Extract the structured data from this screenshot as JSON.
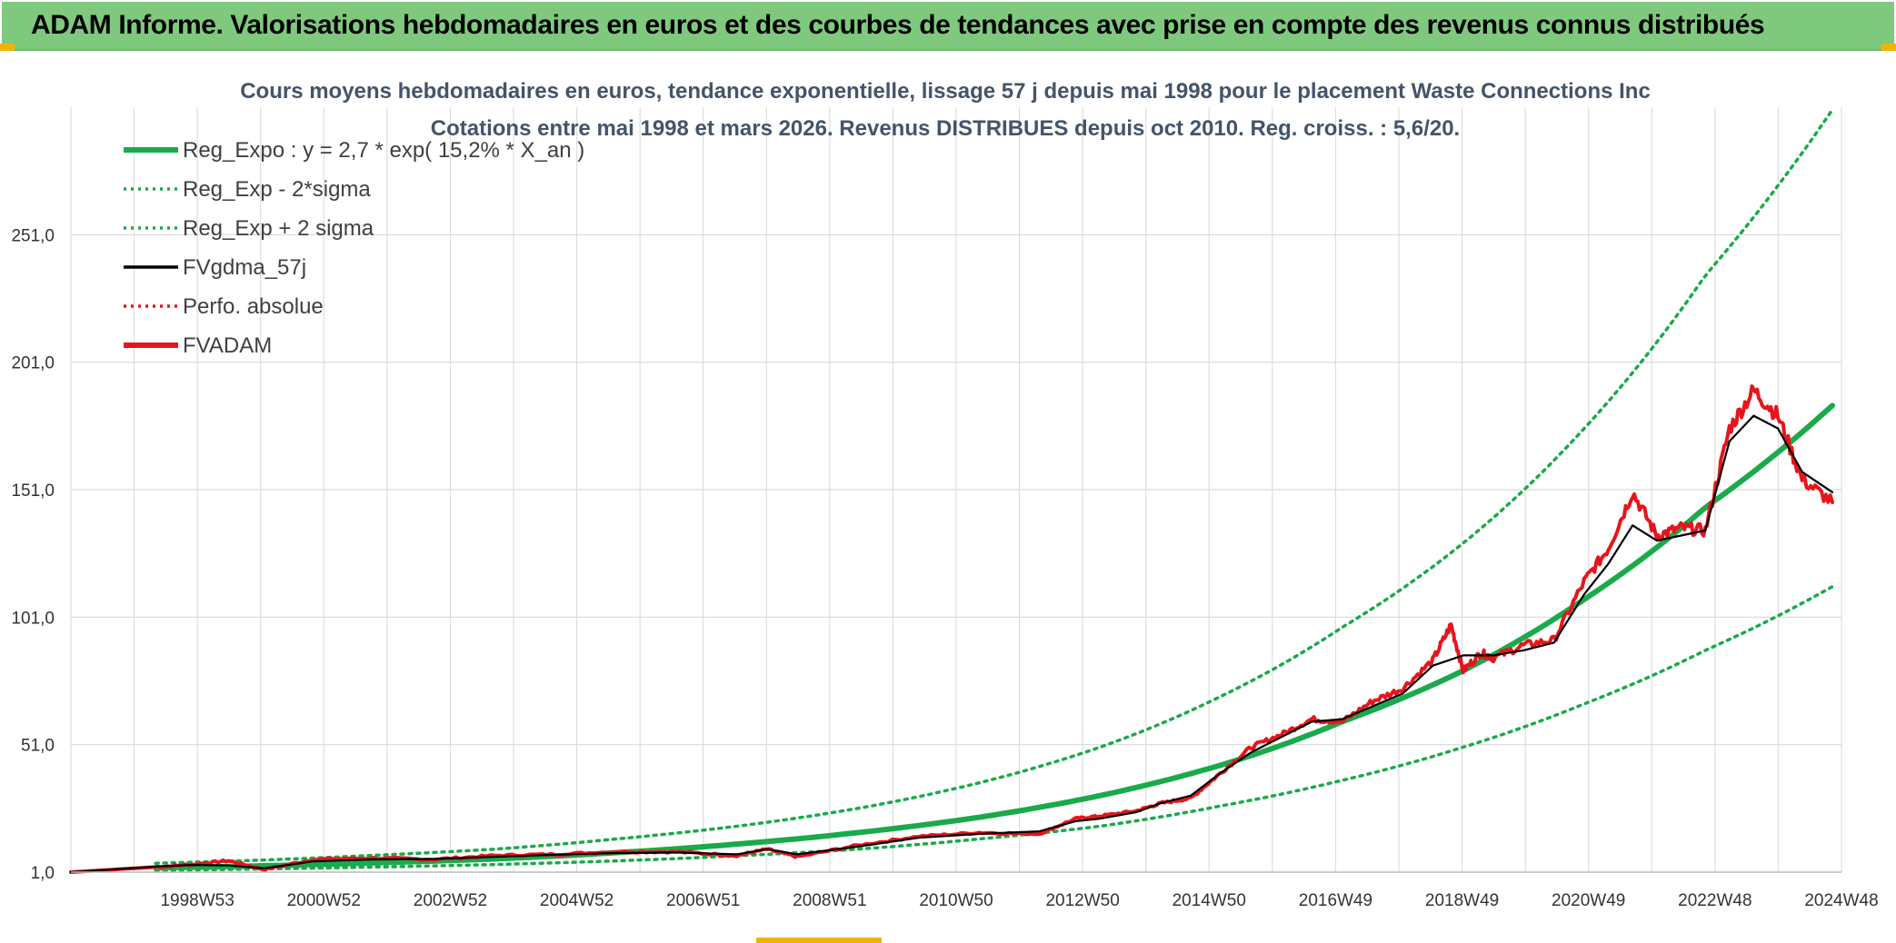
{
  "header": {
    "title": "ADAM Informe. Valorisations hebdomadaires en euros et des courbes de tendances avec prise en compte des revenus connus distribués"
  },
  "colors": {
    "header_bg": "#7fc97f",
    "accent": "#f0b400",
    "trend_green": "#1aaa4b",
    "fvadam_red": "#e8141b",
    "gdma_black": "#000000",
    "title_text": "#44546a"
  },
  "chart_data": {
    "type": "line",
    "title_line1": "Cours moyens hebdomadaires en euros, tendance exponentielle, lissage 57 j depuis mai 1998 pour le placement Waste Connections Inc",
    "title_line2": "Cotations entre mai 1998 et mars 2026. Revenus DISTRIBUES depuis oct 2010. Reg. croiss. : 5,6/20.",
    "xlabel": "",
    "ylabel": "",
    "x_range": [
      1997.0,
      2026.25
    ],
    "ylim": [
      1.0,
      301.0
    ],
    "y_ticks": [
      1.0,
      51.0,
      101.0,
      151.0,
      201.0,
      251.0
    ],
    "y_tick_labels": [
      "1,0",
      "51,0",
      "101,0",
      "151,0",
      "201,0",
      "251,0"
    ],
    "x_tick_labels": [
      "1998W53",
      "2000W52",
      "2002W52",
      "2004W52",
      "2006W51",
      "2008W51",
      "2010W50",
      "2012W50",
      "2014W50",
      "2016W49",
      "2018W49",
      "2020W49",
      "2022W48",
      "2024W48"
    ],
    "grid": true,
    "legend_position": "top-left",
    "legend": [
      {
        "label": "Reg_Expo : y = 2,7 * exp( 15,2% *  X_an )",
        "style": "thick-solid",
        "color": "#1aaa4b"
      },
      {
        "label": "Reg_Exp - 2*sigma",
        "style": "dotted",
        "color": "#1aaa4b"
      },
      {
        "label": "Reg_Exp + 2 sigma",
        "style": "dotted",
        "color": "#1aaa4b"
      },
      {
        "label": "FVgdma_57j",
        "style": "solid",
        "color": "#000000"
      },
      {
        "label": "Perfo. absolue",
        "style": "dotted",
        "color": "#e8141b"
      },
      {
        "label": "FVADAM",
        "style": "thick-solid",
        "color": "#e8141b"
      }
    ],
    "series": [
      {
        "name": "Reg_Expo : y = 2,7 * exp( 15,2% *  X_an )",
        "x": [
          1998.4,
          2000,
          2002,
          2004,
          2006,
          2008,
          2010,
          2012,
          2014,
          2016,
          2018,
          2020,
          2022,
          2024,
          2026.1
        ],
        "values": [
          2.7,
          3.4,
          4.6,
          6.2,
          8.6,
          12,
          16.5,
          22.5,
          31,
          43,
          60,
          80,
          108,
          144,
          184
        ]
      },
      {
        "name": "Reg_Exp - 2*sigma",
        "x": [
          1998.4,
          2000,
          2002,
          2004,
          2006,
          2008,
          2010,
          2012,
          2014,
          2016,
          2018,
          2020,
          2022,
          2024,
          2026.1
        ],
        "values": [
          1.7,
          2.2,
          3.0,
          4.0,
          5.4,
          7.4,
          10,
          14,
          19,
          27,
          37,
          50,
          67,
          88,
          113
        ]
      },
      {
        "name": "Reg_Exp + 2 sigma",
        "x": [
          1998.4,
          2000,
          2002,
          2004,
          2006,
          2008,
          2010,
          2012,
          2014,
          2016,
          2018,
          2020,
          2022,
          2024,
          2026.1
        ],
        "values": [
          4.5,
          5.6,
          7.6,
          10,
          14,
          19,
          26,
          36,
          50,
          70,
          97,
          130,
          175,
          235,
          300
        ]
      },
      {
        "name": "FVgdma_57j",
        "x": [
          1997.0,
          1998.4,
          1999,
          1999.6,
          2000.2,
          2001,
          2002,
          2003,
          2004,
          2005,
          2006,
          2007,
          2008,
          2008.5,
          2009,
          2010,
          2011,
          2012,
          2013,
          2013.6,
          2014,
          2014.6,
          2015,
          2015.5,
          2016,
          2016.5,
          2017,
          2017.5,
          2018,
          2018.5,
          2019,
          2019.5,
          2020,
          2020.5,
          2021,
          2021.5,
          2022,
          2022.4,
          2022.8,
          2023.2,
          2023.6,
          2024,
          2024.4,
          2024.8,
          2025.2,
          2025.6,
          2026.1
        ],
        "values": [
          1.0,
          3.2,
          3.8,
          3.6,
          2.5,
          5.2,
          6.0,
          6.2,
          7.0,
          7.8,
          8.5,
          8.7,
          8.0,
          10.0,
          8.0,
          11.0,
          14.5,
          16.0,
          17.0,
          21.0,
          22.0,
          24.5,
          28.0,
          31.0,
          40.0,
          48.0,
          54.0,
          60.0,
          61.0,
          66.0,
          71.0,
          82.0,
          86.0,
          86.0,
          88.0,
          91.0,
          110.0,
          122.0,
          137.0,
          131.0,
          133.0,
          135.0,
          170.0,
          180.0,
          175.0,
          158.0,
          150.0
        ]
      },
      {
        "name": "FVADAM",
        "x": [
          1997.0,
          1998.4,
          1999,
          1999.6,
          2000.2,
          2001,
          2002,
          2003,
          2004,
          2005,
          2006,
          2007,
          2008,
          2008.5,
          2009,
          2010,
          2011,
          2012,
          2013,
          2013.6,
          2014,
          2014.6,
          2015,
          2015.5,
          2016,
          2016.5,
          2017,
          2017.5,
          2018,
          2018.5,
          2019,
          2019.5,
          2019.8,
          2020,
          2020.3,
          2020.5,
          2021,
          2021.5,
          2022,
          2022.4,
          2022.8,
          2023.2,
          2023.6,
          2024,
          2024.4,
          2024.8,
          2025.2,
          2025.6,
          2026.1
        ],
        "values": [
          1.0,
          3.0,
          4.0,
          5.5,
          2.0,
          6.0,
          6.5,
          6.0,
          7.5,
          8.0,
          9.0,
          9.0,
          7.5,
          10.0,
          7.0,
          11.5,
          15.0,
          16.5,
          16.0,
          22.0,
          23.0,
          25.0,
          28.0,
          30.0,
          40.0,
          50.0,
          55.0,
          61.0,
          60.0,
          68.0,
          73.0,
          84.0,
          98.0,
          80.0,
          87.0,
          85.0,
          90.0,
          92.0,
          115.0,
          128.0,
          150.0,
          133.0,
          136.0,
          135.0,
          175.0,
          190.0,
          180.0,
          155.0,
          146.0
        ]
      }
    ]
  }
}
